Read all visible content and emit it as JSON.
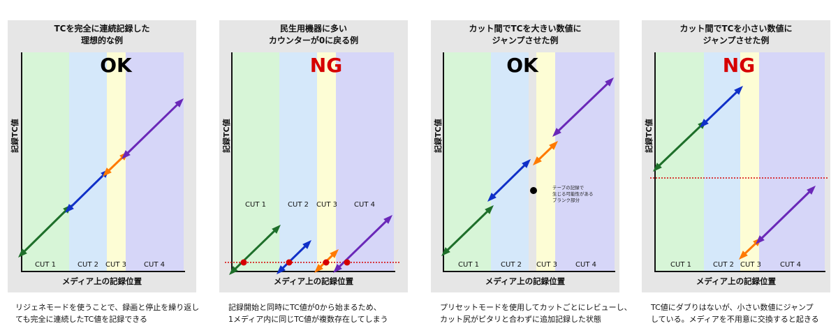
{
  "colors": {
    "cut1": "#d7f5d7",
    "cut2": "#d5e8fa",
    "cut3": "#fdfdd5",
    "cut4": "#d6d6f8",
    "ok": "#000000",
    "ng": "#d60000",
    "seg1": "#1e6f2a",
    "seg2": "#1030c8",
    "seg3": "#ff7a00",
    "seg4": "#6a28b8",
    "redline": "#d60000"
  },
  "axis": {
    "ylabel": "記録TC値",
    "xlabel": "メディア上の記録位置"
  },
  "cuts": [
    "CUT 1",
    "CUT 2",
    "CUT 3",
    "CUT 4"
  ],
  "panels": [
    {
      "title": "TCを完全に連続記録した\n理想的な例",
      "status": "OK",
      "caption": "リジェネモードを使うことで、録画と停止を繰り返し\nても完全に連続したTC値を記録できる"
    },
    {
      "title": "民生用機器に多い\nカウンターが0に戻る例",
      "status": "NG",
      "caption": "記録開始と同時にTC値が0から始まるため、\n1メディア内に同じTC値が複数存在してしまう"
    },
    {
      "title": "カット間でTCを大きい数値に\nジャンプさせた例",
      "status": "OK",
      "note": [
        "テープの記録で",
        "生じる可能性がある",
        "ブランク部分"
      ],
      "caption": "プリセットモードを使用してカットごとにレビューし、\nカット尻がピタリと合わずに追加記録した状態"
    },
    {
      "title": "カット間でTCを小さい数値に\nジャンプさせた例",
      "status": "NG",
      "caption": "TC値にダブりはないが、小さい数値にジャンプ\nしている。メディアを不用意に交換すると起きる"
    }
  ]
}
